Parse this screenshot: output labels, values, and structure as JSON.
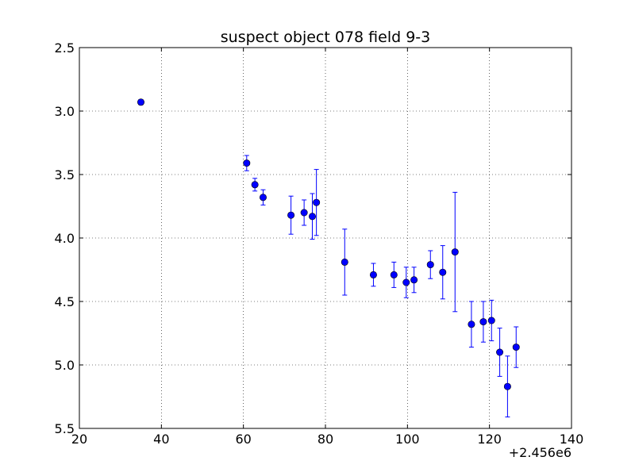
{
  "chart_data": {
    "type": "scatter",
    "title": "suspect object 078 field 9-3",
    "xlabel": "",
    "ylabel": "",
    "x_offset_label": "+2.456e6",
    "xlim": [
      20,
      140
    ],
    "ylim": [
      2.5,
      5.5
    ],
    "y_inverted": true,
    "grid": true,
    "grid_style": "dotted",
    "marker": "circle",
    "color": "#0000ff",
    "x_ticks": [
      20,
      40,
      60,
      80,
      100,
      120,
      140
    ],
    "x_tick_labels": [
      "20",
      "40",
      "60",
      "80",
      "100",
      "120",
      "140"
    ],
    "y_ticks": [
      2.5,
      3.0,
      3.5,
      4.0,
      4.5,
      5.0,
      5.5
    ],
    "y_tick_labels": [
      "2.5",
      "3.0",
      "3.5",
      "4.0",
      "4.5",
      "5.0",
      "5.5"
    ],
    "points": [
      {
        "x": 35.0,
        "y": 2.93,
        "err": 0.02
      },
      {
        "x": 60.8,
        "y": 3.41,
        "err": 0.06
      },
      {
        "x": 62.8,
        "y": 3.58,
        "err": 0.05
      },
      {
        "x": 64.8,
        "y": 3.68,
        "err": 0.06
      },
      {
        "x": 71.6,
        "y": 3.82,
        "err": 0.15
      },
      {
        "x": 74.8,
        "y": 3.8,
        "err": 0.1
      },
      {
        "x": 76.8,
        "y": 3.83,
        "err": 0.18
      },
      {
        "x": 77.8,
        "y": 3.72,
        "err": 0.26
      },
      {
        "x": 84.7,
        "y": 4.19,
        "err": 0.26
      },
      {
        "x": 91.7,
        "y": 4.29,
        "err": 0.09
      },
      {
        "x": 96.7,
        "y": 4.29,
        "err": 0.1
      },
      {
        "x": 99.7,
        "y": 4.35,
        "err": 0.12
      },
      {
        "x": 101.6,
        "y": 4.33,
        "err": 0.1
      },
      {
        "x": 105.6,
        "y": 4.21,
        "err": 0.11
      },
      {
        "x": 108.6,
        "y": 4.27,
        "err": 0.21
      },
      {
        "x": 111.6,
        "y": 4.11,
        "err": 0.47
      },
      {
        "x": 115.6,
        "y": 4.68,
        "err": 0.18
      },
      {
        "x": 118.5,
        "y": 4.66,
        "err": 0.16
      },
      {
        "x": 120.5,
        "y": 4.65,
        "err": 0.16
      },
      {
        "x": 122.5,
        "y": 4.9,
        "err": 0.19
      },
      {
        "x": 124.4,
        "y": 5.17,
        "err": 0.24
      },
      {
        "x": 126.5,
        "y": 4.86,
        "err": 0.16
      }
    ]
  }
}
